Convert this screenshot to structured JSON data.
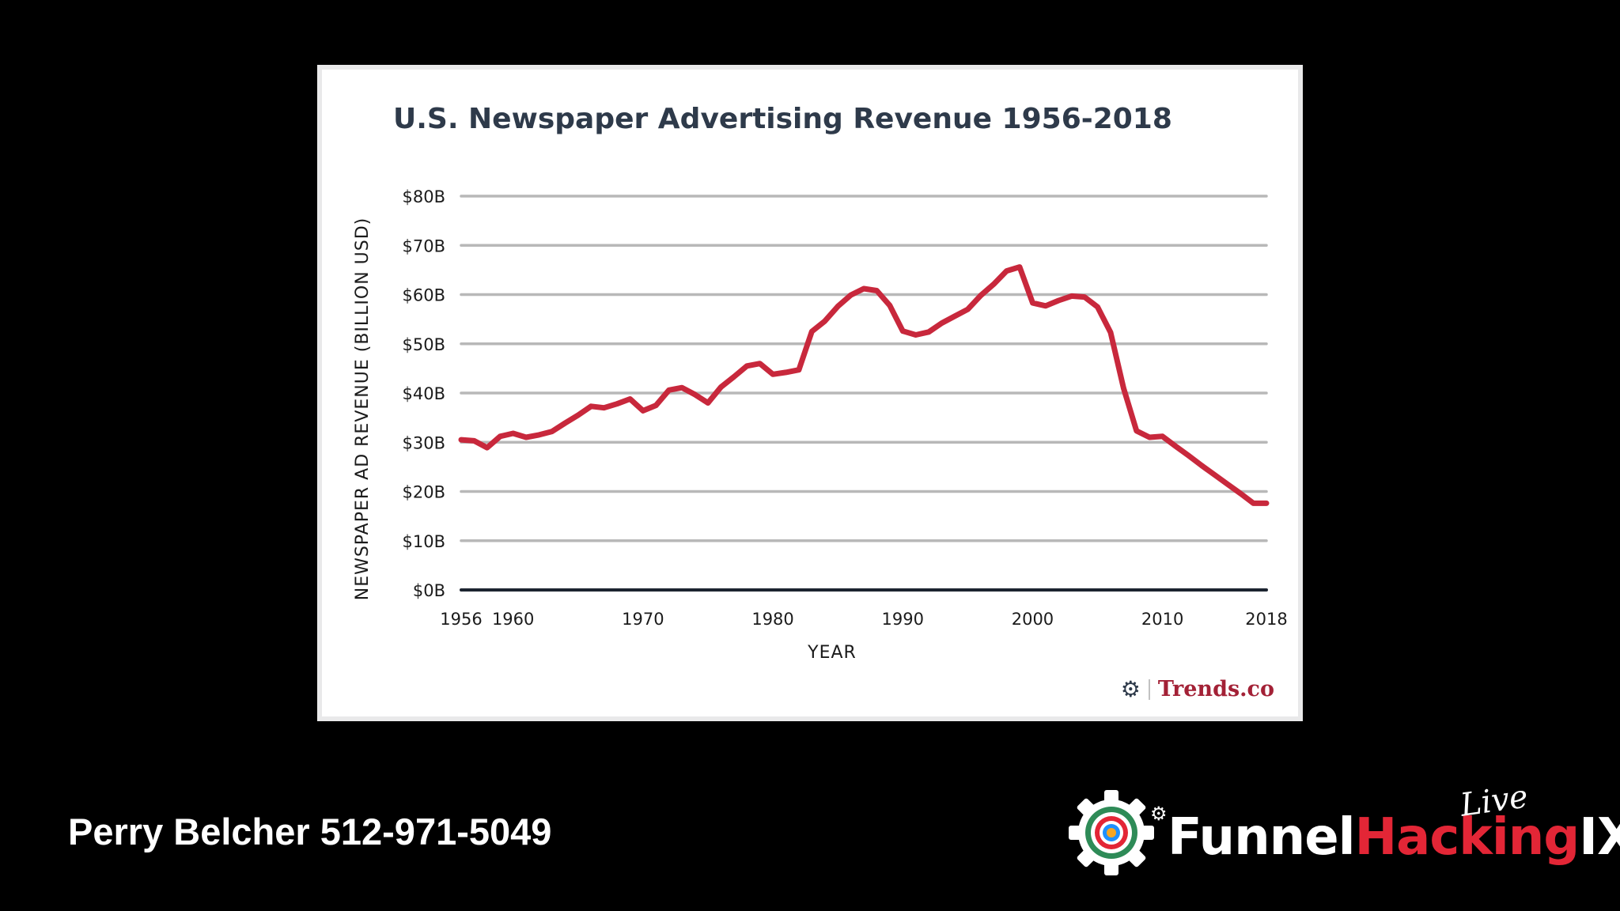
{
  "chart_data": {
    "type": "line",
    "title": "U.S. Newspaper Advertising Revenue 1956-2018",
    "xlabel": "YEAR",
    "ylabel": "NEWSPAPER AD REVENUE (BILLION USD)",
    "x_ticks": [
      1956,
      1960,
      1970,
      1980,
      1990,
      2000,
      2010,
      2018
    ],
    "y_ticks": [
      "$0B",
      "$10B",
      "$20B",
      "$30B",
      "$40B",
      "$50B",
      "$60B",
      "$70B",
      "$80B"
    ],
    "y_tick_values": [
      0,
      10,
      20,
      30,
      40,
      50,
      60,
      70,
      80
    ],
    "xlim": [
      1956,
      2018
    ],
    "ylim": [
      0,
      80
    ],
    "grid": true,
    "series": [
      {
        "color": "#c8283c",
        "x": [
          1956,
          1957,
          1958,
          1959,
          1960,
          1961,
          1962,
          1963,
          1964,
          1965,
          1966,
          1967,
          1968,
          1969,
          1970,
          1971,
          1972,
          1973,
          1974,
          1975,
          1976,
          1977,
          1978,
          1979,
          1980,
          1981,
          1982,
          1983,
          1984,
          1985,
          1986,
          1987,
          1988,
          1989,
          1990,
          1991,
          1992,
          1993,
          1994,
          1995,
          1996,
          1997,
          1998,
          1999,
          2000,
          2001,
          2002,
          2003,
          2004,
          2005,
          2006,
          2007,
          2008,
          2009,
          2010,
          2011,
          2012,
          2013,
          2014,
          2015,
          2016,
          2017,
          2018
        ],
        "y": [
          30.5,
          30.3,
          28.9,
          31.2,
          31.8,
          31.0,
          31.5,
          32.2,
          33.9,
          35.5,
          37.3,
          37.0,
          37.8,
          38.8,
          36.4,
          37.5,
          40.6,
          41.1,
          39.7,
          38.0,
          41.2,
          43.3,
          45.5,
          46.0,
          43.8,
          44.2,
          44.7,
          52.5,
          54.6,
          57.6,
          59.9,
          61.2,
          60.8,
          57.8,
          52.6,
          51.8,
          52.4,
          54.2,
          55.6,
          57.0,
          59.8,
          62.1,
          64.8,
          65.6,
          58.3,
          57.7,
          58.8,
          59.7,
          59.5,
          57.5,
          52.3,
          41.0,
          32.3,
          31.0,
          31.2,
          29.2,
          27.3,
          25.3,
          23.4,
          21.5,
          19.6,
          17.6,
          17.6
        ]
      }
    ]
  },
  "brand": {
    "mark": "⚙",
    "name": "Trends.co"
  },
  "presenter": {
    "text": "Perry Belcher 512-971-5049"
  },
  "event_logo": {
    "part1": "Funnel",
    "part2": "Hacking",
    "part3": "IX",
    "live": "Live"
  },
  "colors": {
    "background": "#000000",
    "card": "#ffffff",
    "title": "#2e3a4a",
    "line": "#c8283c",
    "grid": "#b8b8b8",
    "baseline": "#1c2430",
    "brand_red": "#a32136",
    "hacking_red": "#e32636"
  }
}
